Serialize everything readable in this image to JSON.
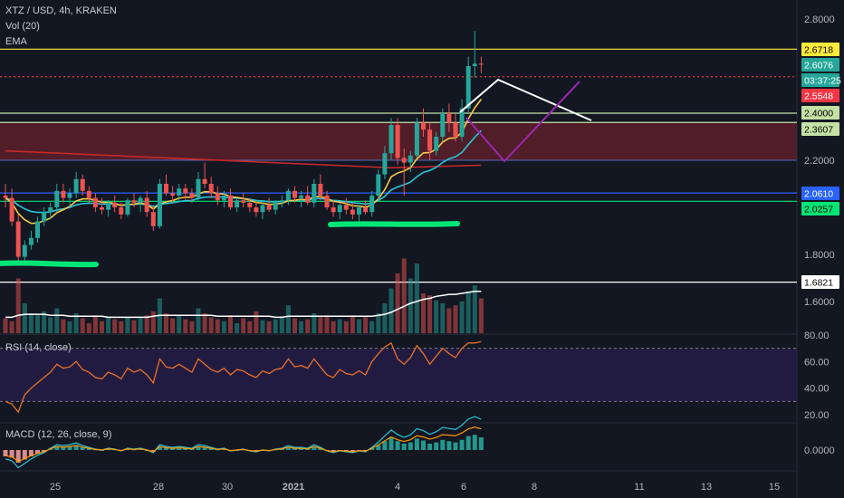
{
  "header": {
    "symbol_line": "XTZ / USD, 4h, KRAKEN",
    "vol_label": "Vol (20)",
    "ema_label": "EMA"
  },
  "rsi": {
    "label": "RSI (14, close)",
    "ticks": [
      "80.00",
      "60.00",
      "40.00",
      "20.00"
    ]
  },
  "macd": {
    "label": "MACD (12, 26, close, 9)",
    "ticks": [
      "0.0000"
    ]
  },
  "price_axis": {
    "ticks": [
      "2.8000",
      "2.2000",
      "1.8000",
      "1.6000"
    ]
  },
  "price_tags": [
    {
      "text": "2.6718",
      "bg": "#ffeb3b",
      "fg": "#000000"
    },
    {
      "text": "2.6076",
      "bg": "#26a69a",
      "fg": "#ffffff"
    },
    {
      "text": "03:37:25",
      "bg": "#26a69a",
      "fg": "#ffffff"
    },
    {
      "text": "2.5548",
      "bg": "#f23645",
      "fg": "#ffffff"
    },
    {
      "text": "2.4000",
      "bg": "#c5e1a5",
      "fg": "#000000"
    },
    {
      "text": "2.3607",
      "bg": "#c5e1a5",
      "fg": "#000000"
    },
    {
      "text": "2.0610",
      "bg": "#2962ff",
      "fg": "#ffffff"
    },
    {
      "text": "2.0257",
      "bg": "#00e676",
      "fg": "#000000"
    },
    {
      "text": "1.6821",
      "bg": "#ffffff",
      "fg": "#000000"
    }
  ],
  "time_axis": {
    "ticks": [
      "25",
      "28",
      "30",
      "2021",
      "4",
      "6",
      "8",
      "11",
      "13",
      "15"
    ]
  },
  "colors": {
    "up": "#26a69a",
    "down": "#ef5350",
    "background": "#131722",
    "ema_fast": "#f7c948",
    "ema_slow": "#26c6da",
    "ema_long": "#c62828",
    "rsi_line": "#e8702a"
  },
  "chart_data": {
    "type": "candlestick",
    "symbol": "XTZ / USD",
    "interval": "4h",
    "exchange": "KRAKEN",
    "price_range": [
      1.44,
      2.9
    ],
    "last_price": 2.6076,
    "countdown": "03:37:25",
    "horizontal_levels": [
      {
        "price": 2.6718,
        "color": "#ffeb3b",
        "style": "solid"
      },
      {
        "price": 2.5548,
        "color": "#f23645",
        "style": "dotted"
      },
      {
        "price": 2.4,
        "color": "#c5e1a5",
        "style": "solid"
      },
      {
        "price": 2.3607,
        "color": "#c5e1a5",
        "style": "solid"
      },
      {
        "price": 2.061,
        "color": "#2962ff",
        "style": "solid"
      },
      {
        "price": 2.0257,
        "color": "#00e676",
        "style": "solid"
      },
      {
        "price": 1.6821,
        "color": "#ffffff",
        "style": "solid"
      }
    ],
    "zone": {
      "from": 2.2,
      "to": 2.3607,
      "color": "#5d1f2a"
    },
    "candles": [
      [
        2.05,
        2.1,
        2.0,
        2.04
      ],
      [
        2.04,
        2.08,
        1.92,
        1.94
      ],
      [
        1.94,
        1.97,
        1.76,
        1.79
      ],
      [
        1.79,
        1.86,
        1.77,
        1.84
      ],
      [
        1.84,
        1.9,
        1.82,
        1.87
      ],
      [
        1.87,
        1.96,
        1.85,
        1.94
      ],
      [
        1.94,
        2.0,
        1.92,
        1.98
      ],
      [
        1.98,
        2.02,
        1.95,
        2.0
      ],
      [
        2.0,
        2.1,
        1.98,
        2.07
      ],
      [
        2.07,
        2.1,
        2.02,
        2.04
      ],
      [
        2.04,
        2.08,
        2.0,
        2.06
      ],
      [
        2.06,
        2.15,
        2.04,
        2.12
      ],
      [
        2.12,
        2.14,
        2.05,
        2.07
      ],
      [
        2.07,
        2.09,
        2.02,
        2.04
      ],
      [
        2.04,
        2.06,
        1.98,
        2.0
      ],
      [
        2.0,
        2.04,
        1.97,
        1.99
      ],
      [
        1.99,
        2.03,
        1.96,
        2.02
      ],
      [
        2.02,
        2.05,
        1.98,
        2.0
      ],
      [
        2.0,
        2.02,
        1.95,
        1.97
      ],
      [
        1.97,
        2.04,
        1.96,
        2.03
      ],
      [
        2.03,
        2.06,
        2.0,
        2.02
      ],
      [
        2.02,
        2.05,
        1.98,
        2.04
      ],
      [
        2.04,
        2.07,
        1.96,
        1.98
      ],
      [
        1.98,
        2.01,
        1.9,
        1.92
      ],
      [
        1.92,
        2.12,
        1.91,
        2.1
      ],
      [
        2.1,
        2.14,
        2.05,
        2.06
      ],
      [
        2.06,
        2.09,
        2.02,
        2.05
      ],
      [
        2.05,
        2.1,
        2.02,
        2.08
      ],
      [
        2.08,
        2.1,
        2.03,
        2.06
      ],
      [
        2.06,
        2.08,
        2.02,
        2.04
      ],
      [
        2.04,
        2.15,
        2.03,
        2.12
      ],
      [
        2.12,
        2.19,
        2.08,
        2.1
      ],
      [
        2.1,
        2.13,
        2.04,
        2.06
      ],
      [
        2.06,
        2.09,
        2.01,
        2.03
      ],
      [
        2.03,
        2.07,
        2.0,
        2.05
      ],
      [
        2.05,
        2.08,
        1.99,
        2.0
      ],
      [
        2.0,
        2.04,
        1.98,
        2.03
      ],
      [
        2.03,
        2.06,
        2.0,
        2.02
      ],
      [
        2.02,
        2.04,
        1.98,
        2.0
      ],
      [
        2.0,
        2.03,
        1.96,
        1.98
      ],
      [
        1.98,
        2.02,
        1.95,
        2.01
      ],
      [
        2.01,
        2.04,
        1.98,
        1.99
      ],
      [
        1.99,
        2.03,
        1.97,
        2.02
      ],
      [
        2.02,
        2.05,
        2.0,
        2.03
      ],
      [
        2.03,
        2.08,
        2.01,
        2.07
      ],
      [
        2.07,
        2.09,
        2.02,
        2.04
      ],
      [
        2.04,
        2.07,
        2.0,
        2.05
      ],
      [
        2.05,
        2.09,
        2.01,
        2.02
      ],
      [
        2.02,
        2.12,
        2.0,
        2.1
      ],
      [
        2.1,
        2.14,
        2.03,
        2.05
      ],
      [
        2.05,
        2.07,
        1.99,
        2.0
      ],
      [
        2.0,
        2.03,
        1.96,
        1.98
      ],
      [
        1.98,
        2.02,
        1.95,
        2.01
      ],
      [
        2.01,
        2.04,
        1.97,
        1.99
      ],
      [
        1.99,
        2.02,
        1.95,
        1.97
      ],
      [
        1.97,
        2.01,
        1.94,
        2.0
      ],
      [
        2.0,
        2.03,
        1.97,
        1.98
      ],
      [
        1.98,
        2.07,
        1.96,
        2.05
      ],
      [
        2.05,
        2.16,
        2.03,
        2.14
      ],
      [
        2.14,
        2.26,
        2.12,
        2.23
      ],
      [
        2.23,
        2.38,
        2.2,
        2.35
      ],
      [
        2.35,
        2.38,
        2.18,
        2.21
      ],
      [
        2.21,
        2.25,
        2.05,
        2.19
      ],
      [
        2.19,
        2.24,
        2.15,
        2.22
      ],
      [
        2.22,
        2.38,
        2.21,
        2.36
      ],
      [
        2.36,
        2.42,
        2.3,
        2.33
      ],
      [
        2.33,
        2.36,
        2.2,
        2.24
      ],
      [
        2.24,
        2.32,
        2.22,
        2.3
      ],
      [
        2.3,
        2.42,
        2.28,
        2.4
      ],
      [
        2.4,
        2.44,
        2.32,
        2.36
      ],
      [
        2.36,
        2.4,
        2.28,
        2.3
      ],
      [
        2.3,
        2.46,
        2.28,
        2.42
      ],
      [
        2.42,
        2.64,
        2.4,
        2.6
      ],
      [
        2.6,
        2.75,
        2.55,
        2.61
      ],
      [
        2.61,
        2.64,
        2.57,
        2.6076
      ]
    ],
    "volume": [
      0.15,
      0.12,
      0.55,
      0.3,
      0.2,
      0.18,
      0.22,
      0.16,
      0.25,
      0.14,
      0.12,
      0.2,
      0.15,
      0.1,
      0.18,
      0.12,
      0.16,
      0.14,
      0.12,
      0.16,
      0.13,
      0.15,
      0.18,
      0.22,
      0.35,
      0.2,
      0.15,
      0.18,
      0.14,
      0.12,
      0.25,
      0.2,
      0.16,
      0.14,
      0.12,
      0.18,
      0.1,
      0.15,
      0.12,
      0.22,
      0.13,
      0.12,
      0.14,
      0.16,
      0.28,
      0.15,
      0.12,
      0.14,
      0.2,
      0.16,
      0.18,
      0.12,
      0.14,
      0.12,
      0.18,
      0.14,
      0.16,
      0.12,
      0.2,
      0.3,
      0.45,
      0.6,
      0.75,
      0.55,
      0.7,
      0.4,
      0.38,
      0.33,
      0.3,
      0.25,
      0.28,
      0.32,
      0.42,
      0.48,
      0.35
    ],
    "volume_ma": [
      0.16,
      0.16,
      0.18,
      0.19,
      0.19,
      0.19,
      0.19,
      0.18,
      0.18,
      0.18,
      0.17,
      0.17,
      0.17,
      0.17,
      0.17,
      0.17,
      0.16,
      0.16,
      0.16,
      0.16,
      0.16,
      0.16,
      0.16,
      0.17,
      0.18,
      0.18,
      0.18,
      0.18,
      0.18,
      0.18,
      0.18,
      0.18,
      0.18,
      0.17,
      0.17,
      0.17,
      0.17,
      0.17,
      0.17,
      0.17,
      0.17,
      0.17,
      0.16,
      0.16,
      0.17,
      0.17,
      0.17,
      0.17,
      0.17,
      0.17,
      0.17,
      0.17,
      0.17,
      0.17,
      0.17,
      0.17,
      0.17,
      0.17,
      0.18,
      0.19,
      0.21,
      0.24,
      0.27,
      0.3,
      0.32,
      0.34,
      0.35,
      0.37,
      0.38,
      0.39,
      0.39,
      0.4,
      0.41,
      0.42,
      0.42
    ],
    "rsi": [
      30,
      28,
      22,
      35,
      40,
      44,
      48,
      52,
      58,
      55,
      56,
      60,
      54,
      52,
      48,
      47,
      52,
      50,
      47,
      55,
      52,
      54,
      50,
      44,
      62,
      56,
      55,
      58,
      55,
      52,
      62,
      58,
      54,
      52,
      55,
      50,
      54,
      53,
      50,
      48,
      53,
      51,
      54,
      55,
      62,
      56,
      57,
      55,
      62,
      56,
      50,
      48,
      54,
      51,
      50,
      53,
      50,
      60,
      66,
      71,
      74,
      62,
      58,
      63,
      72,
      66,
      58,
      64,
      70,
      66,
      63,
      70,
      74,
      74,
      75
    ],
    "rsi_levels": [
      70,
      30
    ],
    "macd_hist": [
      -0.01,
      -0.012,
      -0.02,
      -0.015,
      -0.01,
      -0.006,
      -0.003,
      0.002,
      0.006,
      0.005,
      0.006,
      0.008,
      0.005,
      0.003,
      0.001,
      0.0,
      0.002,
      0.001,
      -0.001,
      0.002,
      0.001,
      0.002,
      0.0,
      -0.003,
      0.006,
      0.004,
      0.003,
      0.004,
      0.003,
      0.002,
      0.006,
      0.005,
      0.003,
      0.001,
      0.002,
      -0.001,
      0.0,
      0.001,
      -0.001,
      -0.002,
      0.0,
      -0.001,
      0.001,
      0.002,
      0.005,
      0.003,
      0.003,
      0.002,
      0.006,
      0.003,
      -0.001,
      -0.003,
      -0.001,
      -0.002,
      -0.003,
      -0.001,
      -0.002,
      0.003,
      0.008,
      0.014,
      0.02,
      0.014,
      0.01,
      0.012,
      0.018,
      0.015,
      0.01,
      0.012,
      0.016,
      0.014,
      0.012,
      0.016,
      0.022,
      0.024,
      0.02
    ]
  }
}
